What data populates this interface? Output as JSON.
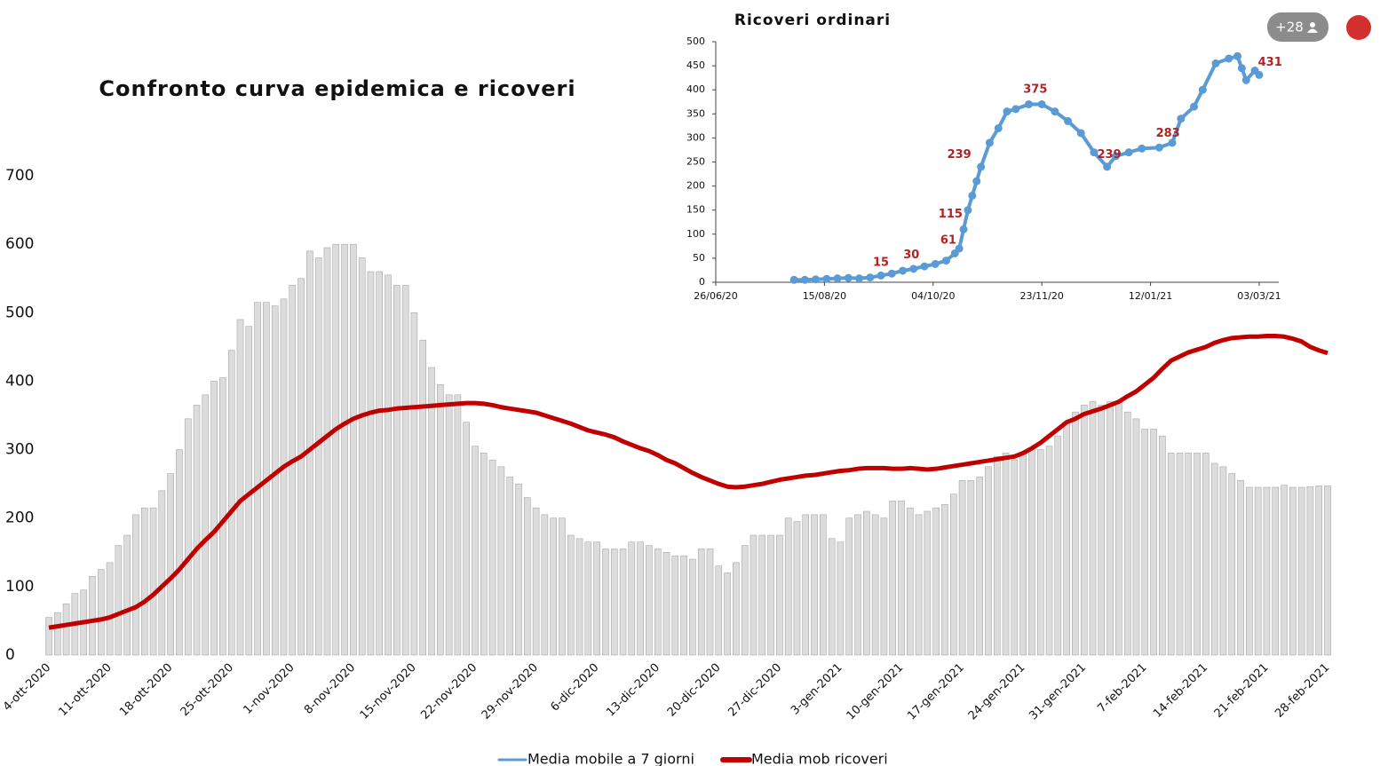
{
  "ui": {
    "badge": "+28"
  },
  "chart_data": [
    {
      "type": "bar",
      "title": "Confronto curva epidemica e ricoveri",
      "categories": [
        "4-ott-2020",
        null,
        null,
        null,
        null,
        null,
        null,
        "11-ott-2020",
        null,
        null,
        null,
        null,
        null,
        null,
        "18-ott-2020",
        null,
        null,
        null,
        null,
        null,
        null,
        "25-ott-2020",
        null,
        null,
        null,
        null,
        null,
        null,
        "1-nov-2020",
        null,
        null,
        null,
        null,
        null,
        null,
        "8-nov-2020",
        null,
        null,
        null,
        null,
        null,
        null,
        "15-nov-2020",
        null,
        null,
        null,
        null,
        null,
        null,
        "22-nov-2020",
        null,
        null,
        null,
        null,
        null,
        null,
        "29-nov-2020",
        null,
        null,
        null,
        null,
        null,
        null,
        "6-dic-2020",
        null,
        null,
        null,
        null,
        null,
        null,
        "13-dic-2020",
        null,
        null,
        null,
        null,
        null,
        null,
        "20-dic-2020",
        null,
        null,
        null,
        null,
        null,
        null,
        "27-dic-2020",
        null,
        null,
        null,
        null,
        null,
        null,
        "3-gen-2021",
        null,
        null,
        null,
        null,
        null,
        null,
        "10-gen-2021",
        null,
        null,
        null,
        null,
        null,
        null,
        "17-gen-2021",
        null,
        null,
        null,
        null,
        null,
        null,
        "24-gen-2021",
        null,
        null,
        null,
        null,
        null,
        null,
        "31-gen-2021",
        null,
        null,
        null,
        null,
        null,
        null,
        "7-feb-2021",
        null,
        null,
        null,
        null,
        null,
        null,
        "14-feb-2021",
        null,
        null,
        null,
        null,
        null,
        null,
        "21-feb-2021",
        null,
        null,
        null,
        null,
        null,
        null,
        "28-feb-2021"
      ],
      "series": [
        {
          "name": "Media mobile a 7 giorni",
          "type": "bar",
          "color": "#dcdcdc",
          "legend_color": "#5b9bd5",
          "values": [
            55,
            62,
            75,
            90,
            95,
            115,
            125,
            135,
            160,
            175,
            205,
            215,
            215,
            240,
            265,
            300,
            345,
            365,
            380,
            400,
            405,
            445,
            490,
            480,
            515,
            515,
            510,
            520,
            540,
            550,
            590,
            580,
            595,
            600,
            600,
            600,
            580,
            560,
            560,
            555,
            540,
            540,
            500,
            460,
            420,
            395,
            380,
            380,
            340,
            305,
            295,
            285,
            275,
            260,
            250,
            230,
            215,
            205,
            200,
            200,
            175,
            170,
            165,
            165,
            155,
            155,
            155,
            165,
            165,
            160,
            155,
            150,
            145,
            145,
            140,
            155,
            155,
            130,
            120,
            135,
            160,
            175,
            175,
            175,
            175,
            200,
            195,
            205,
            205,
            205,
            170,
            165,
            200,
            205,
            210,
            205,
            200,
            225,
            225,
            215,
            205,
            210,
            215,
            220,
            235,
            255,
            255,
            260,
            275,
            290,
            295,
            285,
            295,
            300,
            300,
            305,
            320,
            340,
            355,
            365,
            370,
            365,
            370,
            370,
            355,
            345,
            330,
            330,
            320,
            295,
            295,
            295,
            295,
            295,
            280,
            275,
            265,
            255,
            245,
            245,
            245,
            245,
            248,
            245,
            245,
            246,
            247,
            247
          ]
        },
        {
          "name": "Media mob ricoveri",
          "type": "line",
          "color": "#c00000",
          "values": [
            40,
            42,
            44,
            46,
            48,
            50,
            52,
            55,
            60,
            65,
            70,
            78,
            88,
            100,
            112,
            125,
            140,
            155,
            168,
            180,
            195,
            210,
            225,
            235,
            245,
            255,
            265,
            275,
            283,
            290,
            300,
            310,
            320,
            330,
            338,
            345,
            350,
            354,
            357,
            358,
            360,
            361,
            362,
            363,
            364,
            365,
            366,
            367,
            368,
            368,
            367,
            365,
            362,
            360,
            358,
            356,
            354,
            350,
            346,
            342,
            338,
            333,
            328,
            325,
            322,
            318,
            312,
            307,
            302,
            298,
            292,
            285,
            280,
            273,
            266,
            260,
            255,
            250,
            246,
            245,
            246,
            248,
            250,
            253,
            256,
            258,
            260,
            262,
            263,
            265,
            267,
            269,
            270,
            272,
            273,
            273,
            273,
            272,
            272,
            273,
            272,
            271,
            272,
            274,
            276,
            278,
            280,
            282,
            284,
            286,
            288,
            290,
            295,
            302,
            310,
            320,
            330,
            340,
            345,
            352,
            356,
            360,
            365,
            370,
            378,
            385,
            395,
            405,
            418,
            430,
            436,
            442,
            446,
            450,
            456,
            460,
            463,
            464,
            465,
            465,
            466,
            466,
            465,
            462,
            458,
            450,
            445,
            441
          ]
        }
      ],
      "ylim": [
        0,
        700
      ],
      "yticks": [
        0,
        100,
        200,
        300,
        400,
        500,
        600,
        700
      ],
      "grid": false,
      "legend": "bottom"
    },
    {
      "type": "line",
      "title": "Ricoveri ordinari",
      "color": "#5b9bd5",
      "markers": true,
      "x": [
        "2020-08-01",
        "2020-08-06",
        "2020-08-11",
        "2020-08-16",
        "2020-08-21",
        "2020-08-26",
        "2020-08-31",
        "2020-09-05",
        "2020-09-10",
        "2020-09-15",
        "2020-09-20",
        "2020-09-25",
        "2020-09-30",
        "2020-10-05",
        "2020-10-10",
        "2020-10-14",
        "2020-10-16",
        "2020-10-18",
        "2020-10-20",
        "2020-10-22",
        "2020-10-24",
        "2020-10-26",
        "2020-10-30",
        "2020-11-03",
        "2020-11-07",
        "2020-11-11",
        "2020-11-17",
        "2020-11-23",
        "2020-11-29",
        "2020-12-05",
        "2020-12-11",
        "2020-12-17",
        "2020-12-23",
        "2020-12-27",
        "2021-01-02",
        "2021-01-08",
        "2021-01-16",
        "2021-01-22",
        "2021-01-26",
        "2021-02-01",
        "2021-02-05",
        "2021-02-11",
        "2021-02-17",
        "2021-02-21",
        "2021-02-23",
        "2021-02-25",
        "2021-03-01",
        "2021-03-03"
      ],
      "values": [
        5,
        5,
        6,
        7,
        8,
        9,
        8,
        10,
        14,
        18,
        24,
        28,
        33,
        38,
        45,
        60,
        70,
        110,
        150,
        180,
        210,
        240,
        290,
        320,
        355,
        360,
        370,
        370,
        355,
        335,
        310,
        270,
        240,
        262,
        270,
        278,
        280,
        290,
        340,
        365,
        400,
        455,
        465,
        470,
        445,
        420,
        440,
        431
      ],
      "annotations": [
        {
          "x": "2020-09-10",
          "value": 15
        },
        {
          "x": "2020-09-24",
          "value": 30
        },
        {
          "x": "2020-10-11",
          "value": 61
        },
        {
          "x": "2020-10-12",
          "value": 115
        },
        {
          "x": "2020-10-16",
          "value": 239
        },
        {
          "x": "2020-11-20",
          "value": 375
        },
        {
          "x": "2020-12-24",
          "value": 239
        },
        {
          "x": "2021-01-20",
          "value": 283
        },
        {
          "x": "2021-03-08",
          "value": 431
        }
      ],
      "annotation_color": "#b22222",
      "xlim": [
        "2020-06-26",
        "2021-03-12"
      ],
      "xticks": [
        {
          "value": "2020-06-26",
          "label": "26/06/20"
        },
        {
          "value": "2020-08-15",
          "label": "15/08/20"
        },
        {
          "value": "2020-10-04",
          "label": "04/10/20"
        },
        {
          "value": "2020-11-23",
          "label": "23/11/20"
        },
        {
          "value": "2021-01-12",
          "label": "12/01/21"
        },
        {
          "value": "2021-03-03",
          "label": "03/03/21"
        }
      ],
      "ylim": [
        0,
        500
      ],
      "yticks": [
        0,
        50,
        100,
        150,
        200,
        250,
        300,
        350,
        400,
        450,
        500
      ],
      "grid": false
    }
  ]
}
